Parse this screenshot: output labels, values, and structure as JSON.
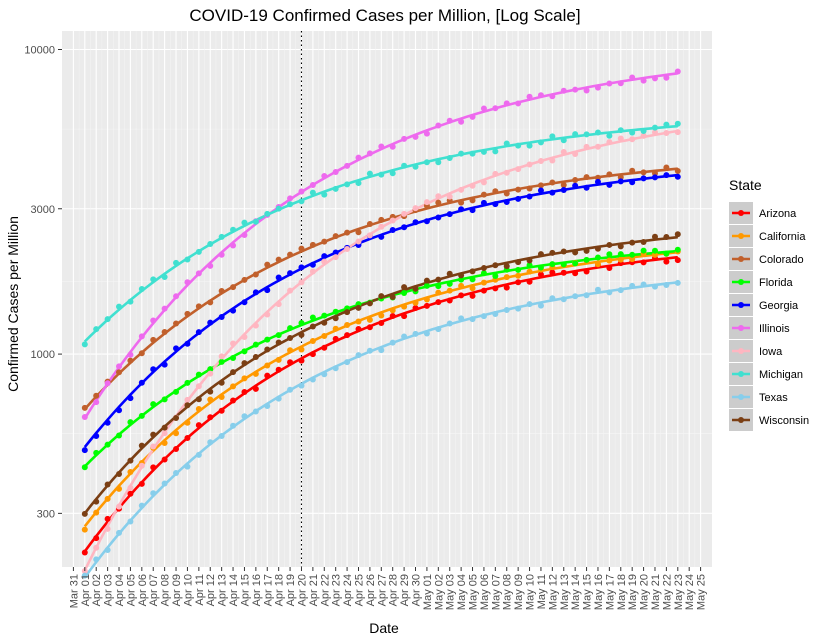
{
  "chart_data": {
    "type": "scatter",
    "title": "COVID-19 Confirmed Cases per Million, [Log Scale]",
    "xlabel": "Date",
    "ylabel": "Confirmed Cases per Million",
    "y_scale": "log10",
    "ylim": [
      200,
      11500
    ],
    "xlim": [
      "2020-03-30",
      "2020-05-26"
    ],
    "y_ticks": [
      300,
      1000,
      3000,
      10000
    ],
    "y_tick_labels": [
      "300",
      "1000",
      "3000",
      "10000"
    ],
    "x_tick_labels": [
      "Mar 31",
      "Apr 01",
      "Apr 02",
      "Apr 03",
      "Apr 04",
      "Apr 05",
      "Apr 06",
      "Apr 07",
      "Apr 08",
      "Apr 09",
      "Apr 10",
      "Apr 11",
      "Apr 12",
      "Apr 13",
      "Apr 14",
      "Apr 15",
      "Apr 16",
      "Apr 17",
      "Apr 18",
      "Apr 19",
      "Apr 20",
      "Apr 21",
      "Apr 22",
      "Apr 23",
      "Apr 24",
      "Apr 25",
      "Apr 26",
      "Apr 27",
      "Apr 28",
      "Apr 29",
      "Apr 30",
      "May 01",
      "May 02",
      "May 03",
      "May 04",
      "May 05",
      "May 06",
      "May 07",
      "May 08",
      "May 09",
      "May 10",
      "May 11",
      "May 12",
      "May 13",
      "May 14",
      "May 15",
      "May 16",
      "May 17",
      "May 18",
      "May 19",
      "May 20",
      "May 21",
      "May 22",
      "May 23",
      "May 24",
      "May 25"
    ],
    "reference_line": {
      "date": "2020-04-20",
      "style": "dotted"
    },
    "x_start_date": "2020-04-01",
    "x_end_date": "2020-05-23",
    "legend": {
      "title": "State",
      "position": "right"
    },
    "grid": true,
    "panel_background": "#ebebeb",
    "series": [
      {
        "name": "Arizona",
        "color": "#ff0000",
        "start_value": 225,
        "end_value": 2080
      },
      {
        "name": "California",
        "color": "#ff9900",
        "start_value": 272,
        "end_value": 2160
      },
      {
        "name": "Colorado",
        "color": "#c1602c",
        "start_value": 660,
        "end_value": 4060
      },
      {
        "name": "Florida",
        "color": "#00ff00",
        "start_value": 428,
        "end_value": 2180
      },
      {
        "name": "Georgia",
        "color": "#0000ff",
        "start_value": 495,
        "end_value": 3870
      },
      {
        "name": "Illinois",
        "color": "#ee6aee",
        "start_value": 615,
        "end_value": 8350
      },
      {
        "name": "Iowa",
        "color": "#ffb6c1",
        "start_value": 195,
        "end_value": 5400
      },
      {
        "name": "Michigan",
        "color": "#40e0d0",
        "start_value": 1100,
        "end_value": 5600
      },
      {
        "name": "Texas",
        "color": "#87ceeb",
        "start_value": 185,
        "end_value": 1720
      },
      {
        "name": "Wisconsin",
        "color": "#7b3f14",
        "start_value": 300,
        "end_value": 2420
      }
    ]
  }
}
